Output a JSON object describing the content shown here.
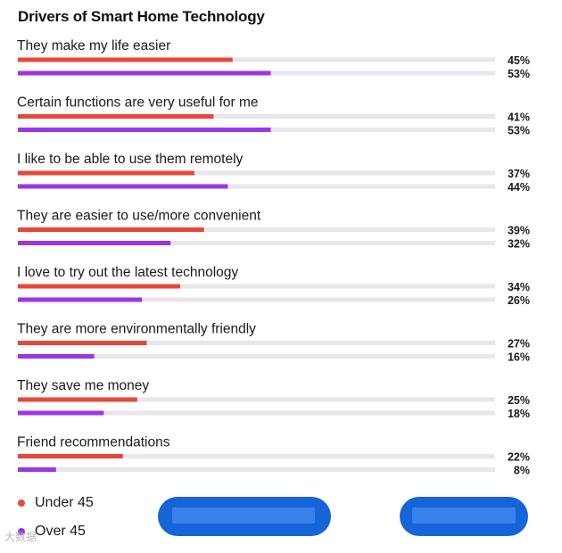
{
  "chart_data": {
    "type": "bar",
    "title": "Drivers of Smart Home Technology",
    "categories": [
      "They make my life easier",
      "Certain functions are very useful for me",
      "I like to be able to use them remotely",
      "They are easier to use/more convenient",
      "I love to try out the latest technology",
      "They are more environmentally friendly",
      "They save me money",
      "Friend recommendations"
    ],
    "series": [
      {
        "name": "Under 45",
        "color": "#e8473a",
        "values": [
          45,
          41,
          37,
          39,
          34,
          27,
          25,
          22
        ]
      },
      {
        "name": "Over 45",
        "color": "#9b35e6",
        "values": [
          53,
          53,
          44,
          32,
          26,
          16,
          18,
          8
        ]
      }
    ],
    "ylim": [
      0,
      100
    ],
    "value_suffix": "%",
    "legend_position": "bottom-left",
    "track_color": "#e6e6ec"
  },
  "buttons": {
    "left_color": "#1565d8",
    "right_color": "#1565d8"
  },
  "watermark": "大数据"
}
